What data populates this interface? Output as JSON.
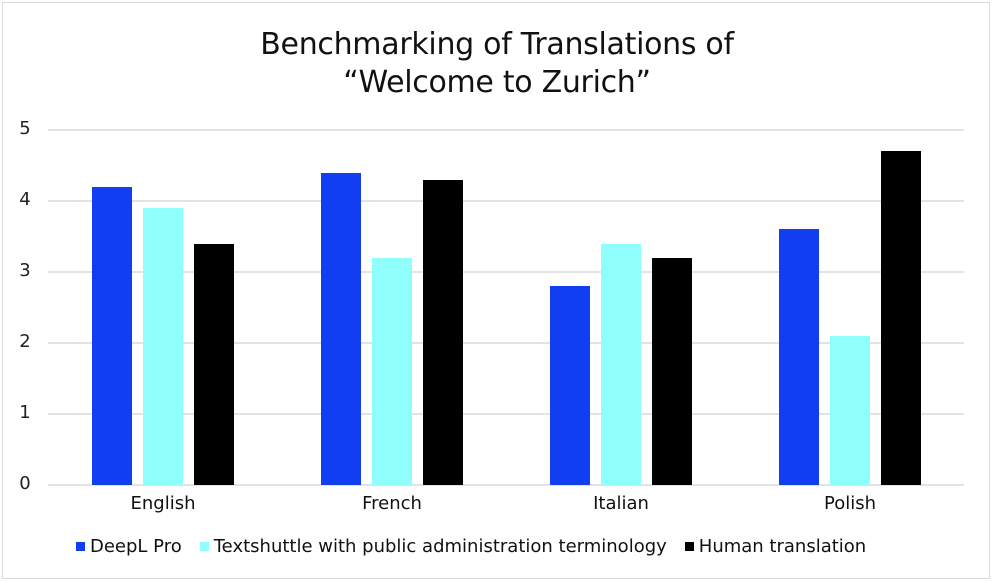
{
  "chart_data": {
    "type": "bar",
    "title": "Benchmarking of Translations of “Welcome to Zurich”",
    "title_lines": [
      "Benchmarking of Translations of",
      "“Welcome to Zurich”"
    ],
    "xlabel": "",
    "ylabel": "",
    "ylim": [
      0,
      5
    ],
    "yticks": [
      "0",
      "1",
      "2",
      "3",
      "4",
      "5"
    ],
    "grid": true,
    "legend_position": "bottom",
    "categories": [
      "English",
      "French",
      "Italian",
      "Polish"
    ],
    "series": [
      {
        "name": "DeepL Pro",
        "color": "#123ef2",
        "values": [
          4.2,
          4.4,
          2.8,
          3.6
        ]
      },
      {
        "name": "Textshuttle with public administration terminology",
        "color": "#8ffffc",
        "values": [
          3.9,
          3.2,
          3.4,
          2.1
        ]
      },
      {
        "name": "Human translation",
        "color": "#000000",
        "values": [
          3.4,
          4.3,
          3.2,
          4.7
        ]
      }
    ]
  }
}
